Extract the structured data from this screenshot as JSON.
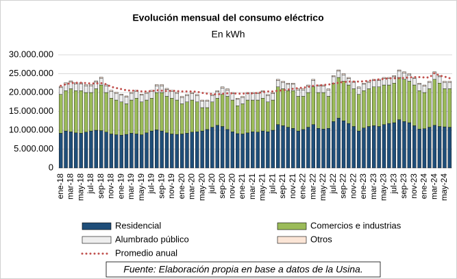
{
  "chart_data": {
    "type": "bar",
    "stacked": true,
    "title": "Evolución mensual del consumo eléctrico",
    "subtitle": "En kWh",
    "source": "Fuente: Elaboración propia en base a datos de la Usina.",
    "categories": [
      "ene-18",
      null,
      "mar-18",
      null,
      "may-18",
      null,
      "jul-18",
      null,
      "sep-18",
      null,
      "nov-18",
      null,
      "ene-19",
      null,
      "mar-19",
      null,
      "may-19",
      null,
      "jul-19",
      null,
      "sep-19",
      null,
      "nov-19",
      null,
      "ene-20",
      null,
      "mar-20",
      null,
      "may-20",
      null,
      "jul-20",
      null,
      "sep-20",
      null,
      "nov-20",
      null,
      "ene-21",
      null,
      "mar-21",
      null,
      "may-21",
      null,
      "jul-21",
      null,
      "sep-21",
      null,
      "nov-21",
      null,
      "ene-22",
      null,
      "mar-22",
      null,
      "may-22",
      null,
      "jul-22",
      null,
      "sep-22",
      null,
      "nov-22",
      null,
      "ene-23",
      null,
      "mar-23",
      null,
      "may-23",
      null,
      "jul-23",
      null,
      "sep-23",
      null,
      "nov-23",
      null,
      "ene-24",
      null,
      "mar-24",
      null,
      "may-24",
      null
    ],
    "series": [
      {
        "name": "Residencial",
        "color": "#1f4e79",
        "values": [
          9200000,
          9800000,
          9600000,
          9300000,
          9200000,
          9500000,
          9800000,
          10000000,
          9900000,
          9500000,
          9000000,
          8800000,
          8700000,
          8900000,
          9200000,
          9000000,
          8800000,
          9300000,
          9800000,
          10100000,
          9800000,
          9300000,
          9000000,
          8900000,
          9000000,
          9200000,
          9500000,
          9600000,
          9800000,
          10200000,
          10800000,
          11300000,
          11000000,
          10200000,
          9600000,
          9100000,
          9000000,
          9300000,
          9600000,
          9500000,
          9800000,
          9600000,
          10000000,
          11500000,
          11200000,
          10800000,
          10500000,
          9800000,
          10200000,
          10800000,
          11500000,
          10500000,
          10300000,
          10500000,
          12300000,
          13200000,
          12500000,
          11800000,
          11000000,
          9800000,
          10600000,
          11000000,
          11200000,
          11000000,
          11500000,
          11800000,
          12000000,
          12800000,
          12300000,
          12000000,
          11200000,
          10300000,
          10400000,
          10800000,
          11300000,
          11000000,
          10900000,
          10800000
        ]
      },
      {
        "name": "Comercios e industrias",
        "color": "#9bbb59",
        "values": [
          10300000,
          10700000,
          11400000,
          11200000,
          11300000,
          10500000,
          10200000,
          11000000,
          12100000,
          10500000,
          9500000,
          9200000,
          8800000,
          8100000,
          8800000,
          9500000,
          8700000,
          8700000,
          8700000,
          9900000,
          10200000,
          9700000,
          9500000,
          9100000,
          8000000,
          8300000,
          8500000,
          7900000,
          6200000,
          5800000,
          6700000,
          7200000,
          8500000,
          8800000,
          8400000,
          7400000,
          8000000,
          8700000,
          8400000,
          8500000,
          8700000,
          7900000,
          8000000,
          10000000,
          9800000,
          9700000,
          10000000,
          9200000,
          8800000,
          9200000,
          10000000,
          9500000,
          9700000,
          8500000,
          10200000,
          10800000,
          10500000,
          10200000,
          10000000,
          9700000,
          9900000,
          10000000,
          10300000,
          10500000,
          10500000,
          10200000,
          10500000,
          11200000,
          11200000,
          11000000,
          10800000,
          10200000,
          9600000,
          10200000,
          12200000,
          11500000,
          10100000,
          10200000
        ]
      },
      {
        "name": "Alumbrado público",
        "color": "#eeeeee",
        "values": [
          1800000,
          1800000,
          1800000,
          1800000,
          1800000,
          1800000,
          1800000,
          1800000,
          1800000,
          1800000,
          1800000,
          1800000,
          1800000,
          1800000,
          1800000,
          1800000,
          1800000,
          1800000,
          1800000,
          1800000,
          1800000,
          1800000,
          1800000,
          1800000,
          1700000,
          1700000,
          1700000,
          1700000,
          1700000,
          1700000,
          1700000,
          1700000,
          1700000,
          1700000,
          1700000,
          1700000,
          1700000,
          1700000,
          1700000,
          1700000,
          1700000,
          1700000,
          1700000,
          1700000,
          1700000,
          1700000,
          1700000,
          1700000,
          1700000,
          1700000,
          1700000,
          1700000,
          1700000,
          1700000,
          1700000,
          1700000,
          1700000,
          1700000,
          1700000,
          1700000,
          1700000,
          1700000,
          1700000,
          1700000,
          1700000,
          1700000,
          1700000,
          1700000,
          1700000,
          1700000,
          1700000,
          1700000,
          1700000,
          1700000,
          1700000,
          1700000,
          1700000,
          1700000
        ]
      },
      {
        "name": "Otros",
        "color": "#fbe5d6",
        "values": [
          300000,
          300000,
          300000,
          300000,
          300000,
          300000,
          300000,
          300000,
          300000,
          300000,
          300000,
          300000,
          300000,
          300000,
          300000,
          300000,
          300000,
          300000,
          300000,
          300000,
          300000,
          300000,
          300000,
          300000,
          300000,
          300000,
          300000,
          300000,
          300000,
          300000,
          300000,
          300000,
          300000,
          300000,
          300000,
          300000,
          300000,
          300000,
          300000,
          300000,
          300000,
          300000,
          300000,
          300000,
          300000,
          300000,
          300000,
          300000,
          300000,
          300000,
          300000,
          300000,
          300000,
          300000,
          300000,
          300000,
          300000,
          300000,
          300000,
          300000,
          300000,
          300000,
          300000,
          300000,
          300000,
          300000,
          300000,
          300000,
          300000,
          300000,
          300000,
          300000,
          300000,
          300000,
          300000,
          300000,
          300000,
          300000
        ]
      },
      {
        "name": "Promedio anual",
        "color": "#c0504d",
        "type": "line",
        "values": [
          21800000,
          22200000,
          22500000,
          22600000,
          22600000,
          22500000,
          22400000,
          22400000,
          22500000,
          22200000,
          21500000,
          21200000,
          20900000,
          20600000,
          20500000,
          20500000,
          20300000,
          20300000,
          20400000,
          20600000,
          20500000,
          20400000,
          20500000,
          20400000,
          20300000,
          20300000,
          20300000,
          20200000,
          19900000,
          19700000,
          19600000,
          19500000,
          19700000,
          19800000,
          19800000,
          19700000,
          19700000,
          19800000,
          19800000,
          19900000,
          20100000,
          20300000,
          20300000,
          20500000,
          20600000,
          20800000,
          21000000,
          21200000,
          21300000,
          21500000,
          21800000,
          21900000,
          22000000,
          22100000,
          22400000,
          22600000,
          22800000,
          22900000,
          22900000,
          22900000,
          23000000,
          23100000,
          23300000,
          23500000,
          23600000,
          23800000,
          23800000,
          23800000,
          23900000,
          24000000,
          24100000,
          24100000,
          24000000,
          24000000,
          25200000,
          24500000,
          24200000,
          23800000
        ]
      }
    ],
    "ylim": [
      0,
      30000000
    ],
    "yticks": [
      0,
      {
        "value": 5000000,
        "label": "5.000.000"
      },
      {
        "value": 10000000,
        "label": "10.000.000"
      },
      {
        "value": 15000000,
        "label": "15.000.000"
      },
      {
        "value": 20000000,
        "label": "20.000.000"
      },
      {
        "value": 25000000,
        "label": "25.000.000"
      },
      {
        "value": 30000000,
        "label": "30.000.000"
      }
    ],
    "grid": true,
    "legend": "bottom"
  }
}
